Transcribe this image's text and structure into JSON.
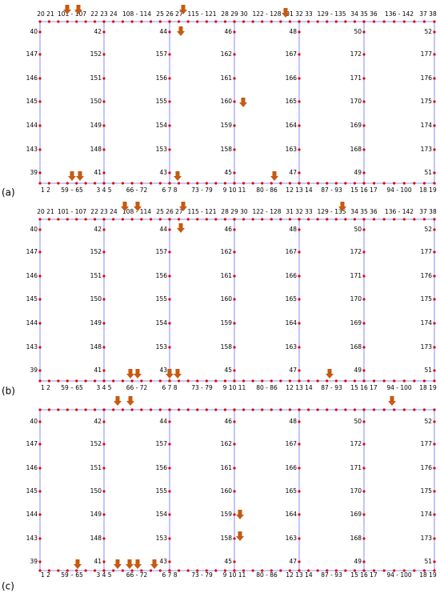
{
  "panels": [
    {
      "label": "(a)",
      "top_labels": [
        "20 21",
        "101 - 107",
        "22 23 24",
        "108 - 114",
        "25 26 27",
        "115 - 121",
        "28 29 30",
        "122 - 128",
        "31 32 33",
        "129 - 135",
        "34 35 36",
        "136 - 142",
        "37 38"
      ],
      "bottom_labels": [
        "1 2",
        "59 – 65",
        "3 4 5",
        "66 - 72",
        "6 7 8",
        "73 - 79",
        "9 10 11",
        "80 - 86",
        "12 13 14",
        "87 - 93",
        "15 16 17",
        "94 - 100",
        "18 19"
      ],
      "columns": [
        [
          40,
          147,
          146,
          145,
          144,
          143,
          39
        ],
        [
          42,
          152,
          151,
          150,
          149,
          148,
          41
        ],
        [
          44,
          157,
          156,
          155,
          154,
          153,
          43
        ],
        [
          46,
          162,
          161,
          160,
          159,
          158,
          45
        ],
        [
          48,
          167,
          166,
          165,
          164,
          163,
          47
        ],
        [
          50,
          172,
          171,
          170,
          169,
          168,
          49
        ],
        [
          52,
          177,
          176,
          175,
          174,
          173,
          51
        ]
      ]
    },
    {
      "label": "(b)",
      "top_labels": [
        "20 21",
        "101 - 107",
        "22 23 24",
        "108 - 114",
        "25 26 27",
        "115 - 121",
        "28 29 30",
        "122 - 128",
        "31 32 33",
        "129 - 135",
        "34 35 36",
        "136 - 142",
        "37 38"
      ],
      "bottom_labels": [
        "1 2",
        "59 – 65",
        "3 4 5",
        "66 - 72",
        "6 7 8",
        "73 - 79",
        "9 10 11",
        "80 - 86",
        "12 13 14",
        "87 - 93",
        "15 16 17",
        "94 - 100",
        "18 19"
      ],
      "columns": [
        [
          40,
          147,
          146,
          145,
          144,
          143,
          39
        ],
        [
          42,
          152,
          151,
          150,
          149,
          148,
          41
        ],
        [
          44,
          157,
          156,
          155,
          154,
          153,
          43
        ],
        [
          46,
          162,
          161,
          160,
          159,
          158,
          45
        ],
        [
          48,
          167,
          166,
          165,
          164,
          163,
          47
        ],
        [
          50,
          172,
          171,
          170,
          169,
          168,
          49
        ],
        [
          52,
          177,
          176,
          175,
          174,
          173,
          51
        ]
      ]
    },
    {
      "label": "(c)",
      "bottom_labels": [
        "1 2",
        "59 – 65",
        "3 4 5",
        "66 - 72",
        "6 7 8",
        "73 - 79",
        "9 10 11",
        "80 - 86",
        "12 13 14",
        "87 - 93",
        "15 16 17",
        "94 - 100",
        "18 19"
      ],
      "columns": [
        [
          40,
          147,
          146,
          145,
          144,
          143,
          39
        ],
        [
          42,
          152,
          151,
          150,
          149,
          148,
          41
        ],
        [
          44,
          157,
          156,
          155,
          154,
          153,
          43
        ],
        [
          46,
          162,
          161,
          160,
          159,
          158,
          45
        ],
        [
          48,
          167,
          166,
          165,
          164,
          163,
          47
        ],
        [
          50,
          172,
          171,
          170,
          169,
          168,
          49
        ],
        [
          52,
          177,
          176,
          175,
          174,
          173,
          51
        ]
      ]
    }
  ]
}
